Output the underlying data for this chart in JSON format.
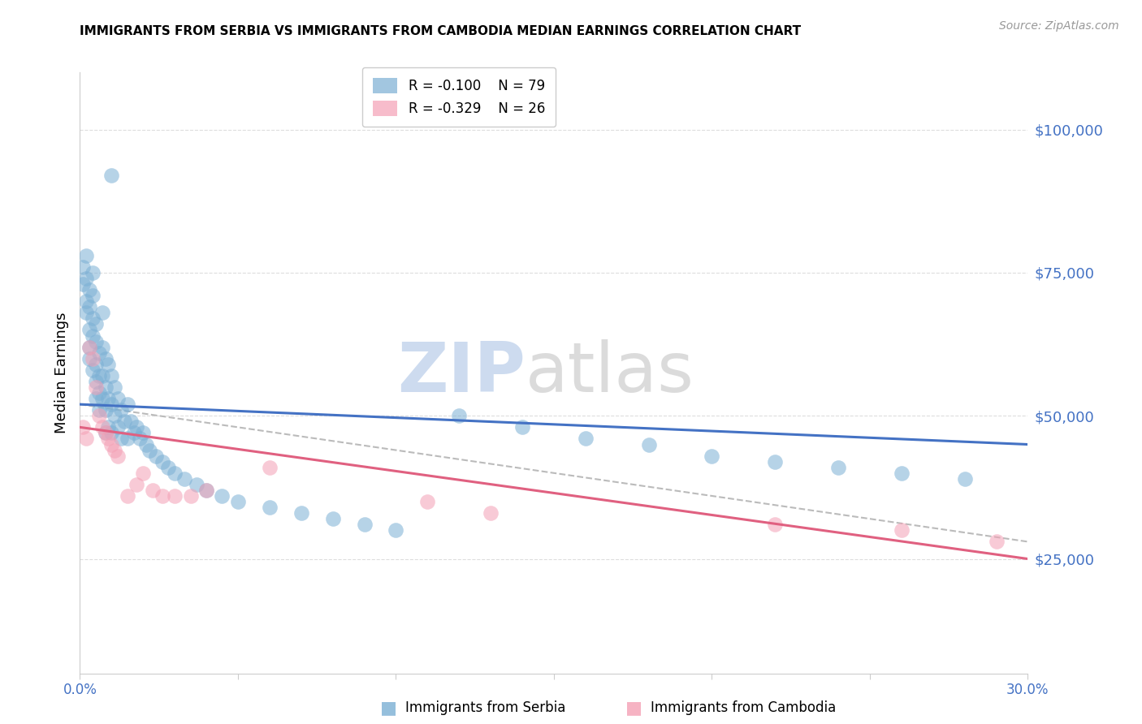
{
  "title": "IMMIGRANTS FROM SERBIA VS IMMIGRANTS FROM CAMBODIA MEDIAN EARNINGS CORRELATION CHART",
  "source": "Source: ZipAtlas.com",
  "ylabel": "Median Earnings",
  "y_ticks": [
    25000,
    50000,
    75000,
    100000
  ],
  "y_tick_labels": [
    "$25,000",
    "$50,000",
    "$75,000",
    "$100,000"
  ],
  "x_min": 0.0,
  "x_max": 0.3,
  "y_min": 5000,
  "y_max": 110000,
  "serbia_color": "#7BAFD4",
  "cambodia_color": "#F4A0B5",
  "serbia_line_color": "#4472C4",
  "cambodia_line_color": "#E06080",
  "dashed_line_color": "#BBBBBB",
  "serbia_R": -0.1,
  "serbia_N": 79,
  "cambodia_R": -0.329,
  "cambodia_N": 26,
  "serbia_label": "Immigrants from Serbia",
  "cambodia_label": "Immigrants from Cambodia",
  "watermark_zip": "ZIP",
  "watermark_atlas": "atlas",
  "serbia_x": [
    0.001,
    0.001,
    0.002,
    0.002,
    0.002,
    0.002,
    0.003,
    0.003,
    0.003,
    0.003,
    0.003,
    0.004,
    0.004,
    0.004,
    0.004,
    0.004,
    0.005,
    0.005,
    0.005,
    0.005,
    0.005,
    0.006,
    0.006,
    0.006,
    0.006,
    0.007,
    0.007,
    0.007,
    0.007,
    0.008,
    0.008,
    0.008,
    0.008,
    0.009,
    0.009,
    0.009,
    0.01,
    0.01,
    0.01,
    0.011,
    0.011,
    0.012,
    0.012,
    0.013,
    0.013,
    0.014,
    0.015,
    0.015,
    0.016,
    0.017,
    0.018,
    0.019,
    0.02,
    0.021,
    0.022,
    0.024,
    0.026,
    0.028,
    0.03,
    0.033,
    0.037,
    0.04,
    0.045,
    0.05,
    0.06,
    0.07,
    0.08,
    0.09,
    0.1,
    0.12,
    0.14,
    0.16,
    0.18,
    0.2,
    0.22,
    0.24,
    0.26,
    0.28,
    0.01
  ],
  "serbia_y": [
    76000,
    73000,
    78000,
    74000,
    70000,
    68000,
    72000,
    69000,
    65000,
    62000,
    60000,
    75000,
    71000,
    67000,
    64000,
    58000,
    66000,
    63000,
    59000,
    56000,
    53000,
    61000,
    57000,
    54000,
    51000,
    68000,
    62000,
    57000,
    53000,
    60000,
    55000,
    51000,
    47000,
    59000,
    53000,
    48000,
    57000,
    52000,
    47000,
    55000,
    50000,
    53000,
    48000,
    51000,
    46000,
    49000,
    52000,
    46000,
    49000,
    47000,
    48000,
    46000,
    47000,
    45000,
    44000,
    43000,
    42000,
    41000,
    40000,
    39000,
    38000,
    37000,
    36000,
    35000,
    34000,
    33000,
    32000,
    31000,
    30000,
    50000,
    48000,
    46000,
    45000,
    43000,
    42000,
    41000,
    40000,
    39000,
    92000
  ],
  "cambodia_x": [
    0.001,
    0.002,
    0.003,
    0.004,
    0.005,
    0.006,
    0.007,
    0.008,
    0.009,
    0.01,
    0.011,
    0.012,
    0.015,
    0.018,
    0.02,
    0.023,
    0.026,
    0.03,
    0.035,
    0.04,
    0.06,
    0.22,
    0.26,
    0.29,
    0.11,
    0.13
  ],
  "cambodia_y": [
    48000,
    46000,
    62000,
    60000,
    55000,
    50000,
    48000,
    47000,
    46000,
    45000,
    44000,
    43000,
    36000,
    38000,
    40000,
    37000,
    36000,
    36000,
    36000,
    37000,
    41000,
    31000,
    30000,
    28000,
    35000,
    33000
  ]
}
